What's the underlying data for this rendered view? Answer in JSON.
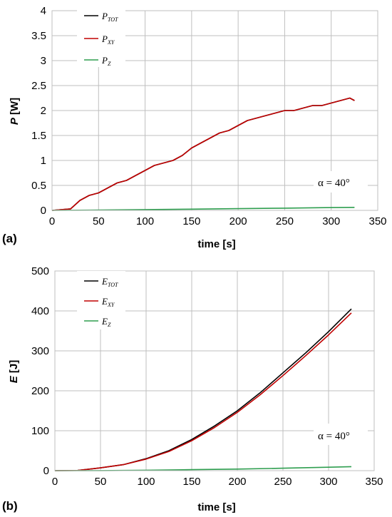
{
  "chart_data": [
    {
      "panel": "(a)",
      "type": "line",
      "xlabel": "time [s]",
      "ylabel_sym": "P",
      "ylabel_unit": " [W]",
      "xlim": [
        0,
        350
      ],
      "ylim": [
        0,
        4
      ],
      "xticks": [
        0,
        50,
        100,
        150,
        200,
        250,
        300,
        350
      ],
      "yticks": [
        0,
        0.5,
        1,
        1.5,
        2,
        2.5,
        3,
        3.5,
        4
      ],
      "grid": true,
      "legend_position": "top-left",
      "annotation": "α = 40°",
      "series": [
        {
          "name": "P",
          "sub": "TOT",
          "color": "#000000",
          "x": [
            0,
            20,
            30,
            40,
            50,
            60,
            70,
            80,
            90,
            100,
            110,
            120,
            130,
            140,
            150,
            160,
            170,
            180,
            190,
            200,
            210,
            220,
            230,
            240,
            250,
            260,
            270,
            280,
            290,
            300,
            310,
            320,
            325
          ],
          "y": [
            0,
            0.03,
            0.2,
            0.3,
            0.35,
            0.45,
            0.55,
            0.6,
            0.7,
            0.8,
            0.9,
            0.95,
            1.0,
            1.1,
            1.25,
            1.35,
            1.45,
            1.55,
            1.6,
            1.7,
            1.8,
            1.85,
            1.9,
            1.95,
            2.0,
            2.0,
            2.05,
            2.1,
            2.1,
            2.15,
            2.2,
            2.25,
            2.2
          ]
        },
        {
          "name": "P",
          "sub": "XY",
          "color": "#c00000",
          "x": [
            0,
            20,
            30,
            40,
            50,
            60,
            70,
            80,
            90,
            100,
            110,
            120,
            130,
            140,
            150,
            160,
            170,
            180,
            190,
            200,
            210,
            220,
            230,
            240,
            250,
            260,
            270,
            280,
            290,
            300,
            310,
            320,
            325
          ],
          "y": [
            0,
            0.03,
            0.2,
            0.3,
            0.35,
            0.45,
            0.55,
            0.6,
            0.7,
            0.8,
            0.9,
            0.95,
            1.0,
            1.1,
            1.25,
            1.35,
            1.45,
            1.55,
            1.6,
            1.7,
            1.8,
            1.85,
            1.9,
            1.95,
            2.0,
            2.0,
            2.05,
            2.1,
            2.1,
            2.15,
            2.2,
            2.25,
            2.2
          ]
        },
        {
          "name": "P",
          "sub": "Z",
          "color": "#2e9e4f",
          "x": [
            0,
            50,
            100,
            150,
            200,
            250,
            300,
            325
          ],
          "y": [
            0,
            0.005,
            0.015,
            0.025,
            0.035,
            0.045,
            0.055,
            0.06
          ]
        }
      ]
    },
    {
      "panel": "(b)",
      "type": "line",
      "xlabel": "time [s]",
      "ylabel_sym": "E",
      "ylabel_unit": " [J]",
      "xlim": [
        0,
        350
      ],
      "ylim": [
        0,
        500
      ],
      "xticks": [
        0,
        50,
        100,
        150,
        200,
        250,
        300,
        350
      ],
      "yticks": [
        0,
        100,
        200,
        300,
        400,
        500
      ],
      "grid": true,
      "legend_position": "top-left",
      "annotation": "α = 40°",
      "series": [
        {
          "name": "E",
          "sub": "TOT",
          "color": "#000000",
          "x": [
            0,
            25,
            50,
            75,
            100,
            125,
            150,
            175,
            200,
            225,
            250,
            275,
            300,
            325
          ],
          "y": [
            0,
            0.5,
            7,
            15,
            30,
            50,
            78,
            112,
            150,
            195,
            245,
            295,
            348,
            405
          ]
        },
        {
          "name": "E",
          "sub": "XY",
          "color": "#c00000",
          "x": [
            0,
            25,
            50,
            75,
            100,
            125,
            150,
            175,
            200,
            225,
            250,
            275,
            300,
            325
          ],
          "y": [
            0,
            0.5,
            7,
            15,
            29,
            48,
            75,
            108,
            146,
            190,
            238,
            288,
            340,
            395
          ]
        },
        {
          "name": "E",
          "sub": "Z",
          "color": "#2e9e4f",
          "x": [
            0,
            50,
            100,
            150,
            200,
            250,
            300,
            325
          ],
          "y": [
            0,
            0.2,
            1,
            2.5,
            4,
            6,
            8.5,
            10
          ]
        }
      ]
    }
  ]
}
